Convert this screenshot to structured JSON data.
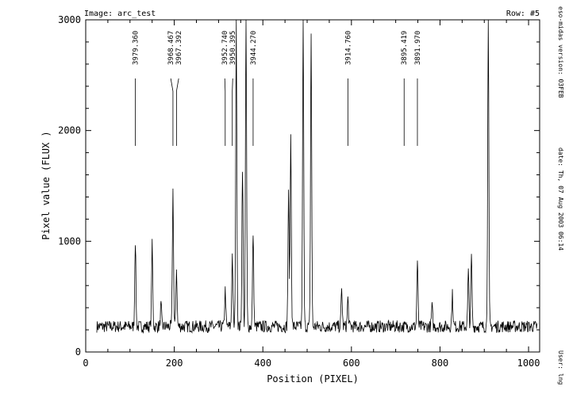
{
  "header": {
    "image_label": "Image: arc_test",
    "row_label": "Row: #5"
  },
  "side_info": {
    "version": "eso-midas version: 03FEB",
    "date": "date: Th, 07 Aug 2003 06:14",
    "user": "User: lng"
  },
  "chart_data": {
    "type": "line",
    "title": "",
    "xlabel": "Position (PIXEL)",
    "ylabel": "Pixel value (FLUX )",
    "xlim": [
      0,
      1025
    ],
    "ylim": [
      0,
      3000
    ],
    "x_ticks": [
      0,
      200,
      400,
      600,
      800,
      1000
    ],
    "y_ticks": [
      0,
      1000,
      2000,
      3000
    ],
    "grid": false,
    "baseline_flux": 230,
    "x_range_observed": [
      25,
      1020
    ],
    "peaks": [
      {
        "x": 112,
        "y": 1010
      },
      {
        "x": 150,
        "y": 970
      },
      {
        "x": 170,
        "y": 420
      },
      {
        "x": 197,
        "y": 1460
      },
      {
        "x": 205,
        "y": 750
      },
      {
        "x": 315,
        "y": 560
      },
      {
        "x": 331,
        "y": 880
      },
      {
        "x": 340,
        "y": 2950
      },
      {
        "x": 354,
        "y": 1680
      },
      {
        "x": 362,
        "y": 3000
      },
      {
        "x": 378,
        "y": 1080
      },
      {
        "x": 458,
        "y": 1420
      },
      {
        "x": 463,
        "y": 1950
      },
      {
        "x": 491,
        "y": 3000
      },
      {
        "x": 509,
        "y": 2880
      },
      {
        "x": 578,
        "y": 570
      },
      {
        "x": 592,
        "y": 480
      },
      {
        "x": 749,
        "y": 820
      },
      {
        "x": 782,
        "y": 410
      },
      {
        "x": 828,
        "y": 520
      },
      {
        "x": 864,
        "y": 720
      },
      {
        "x": 871,
        "y": 860
      },
      {
        "x": 909,
        "y": 3000
      }
    ],
    "line_ids": [
      {
        "label": "3979.360",
        "x": 112
      },
      {
        "label": "3968.467",
        "x": 197
      },
      {
        "label": "3967.392",
        "x": 205
      },
      {
        "label": "3952.740",
        "x": 315
      },
      {
        "label": "3950.395",
        "x": 331
      },
      {
        "label": "3944.270",
        "x": 378
      },
      {
        "label": "3914.760",
        "x": 592
      },
      {
        "label": "3895.419",
        "x": 719
      },
      {
        "label": "3891.970",
        "x": 749
      }
    ]
  }
}
